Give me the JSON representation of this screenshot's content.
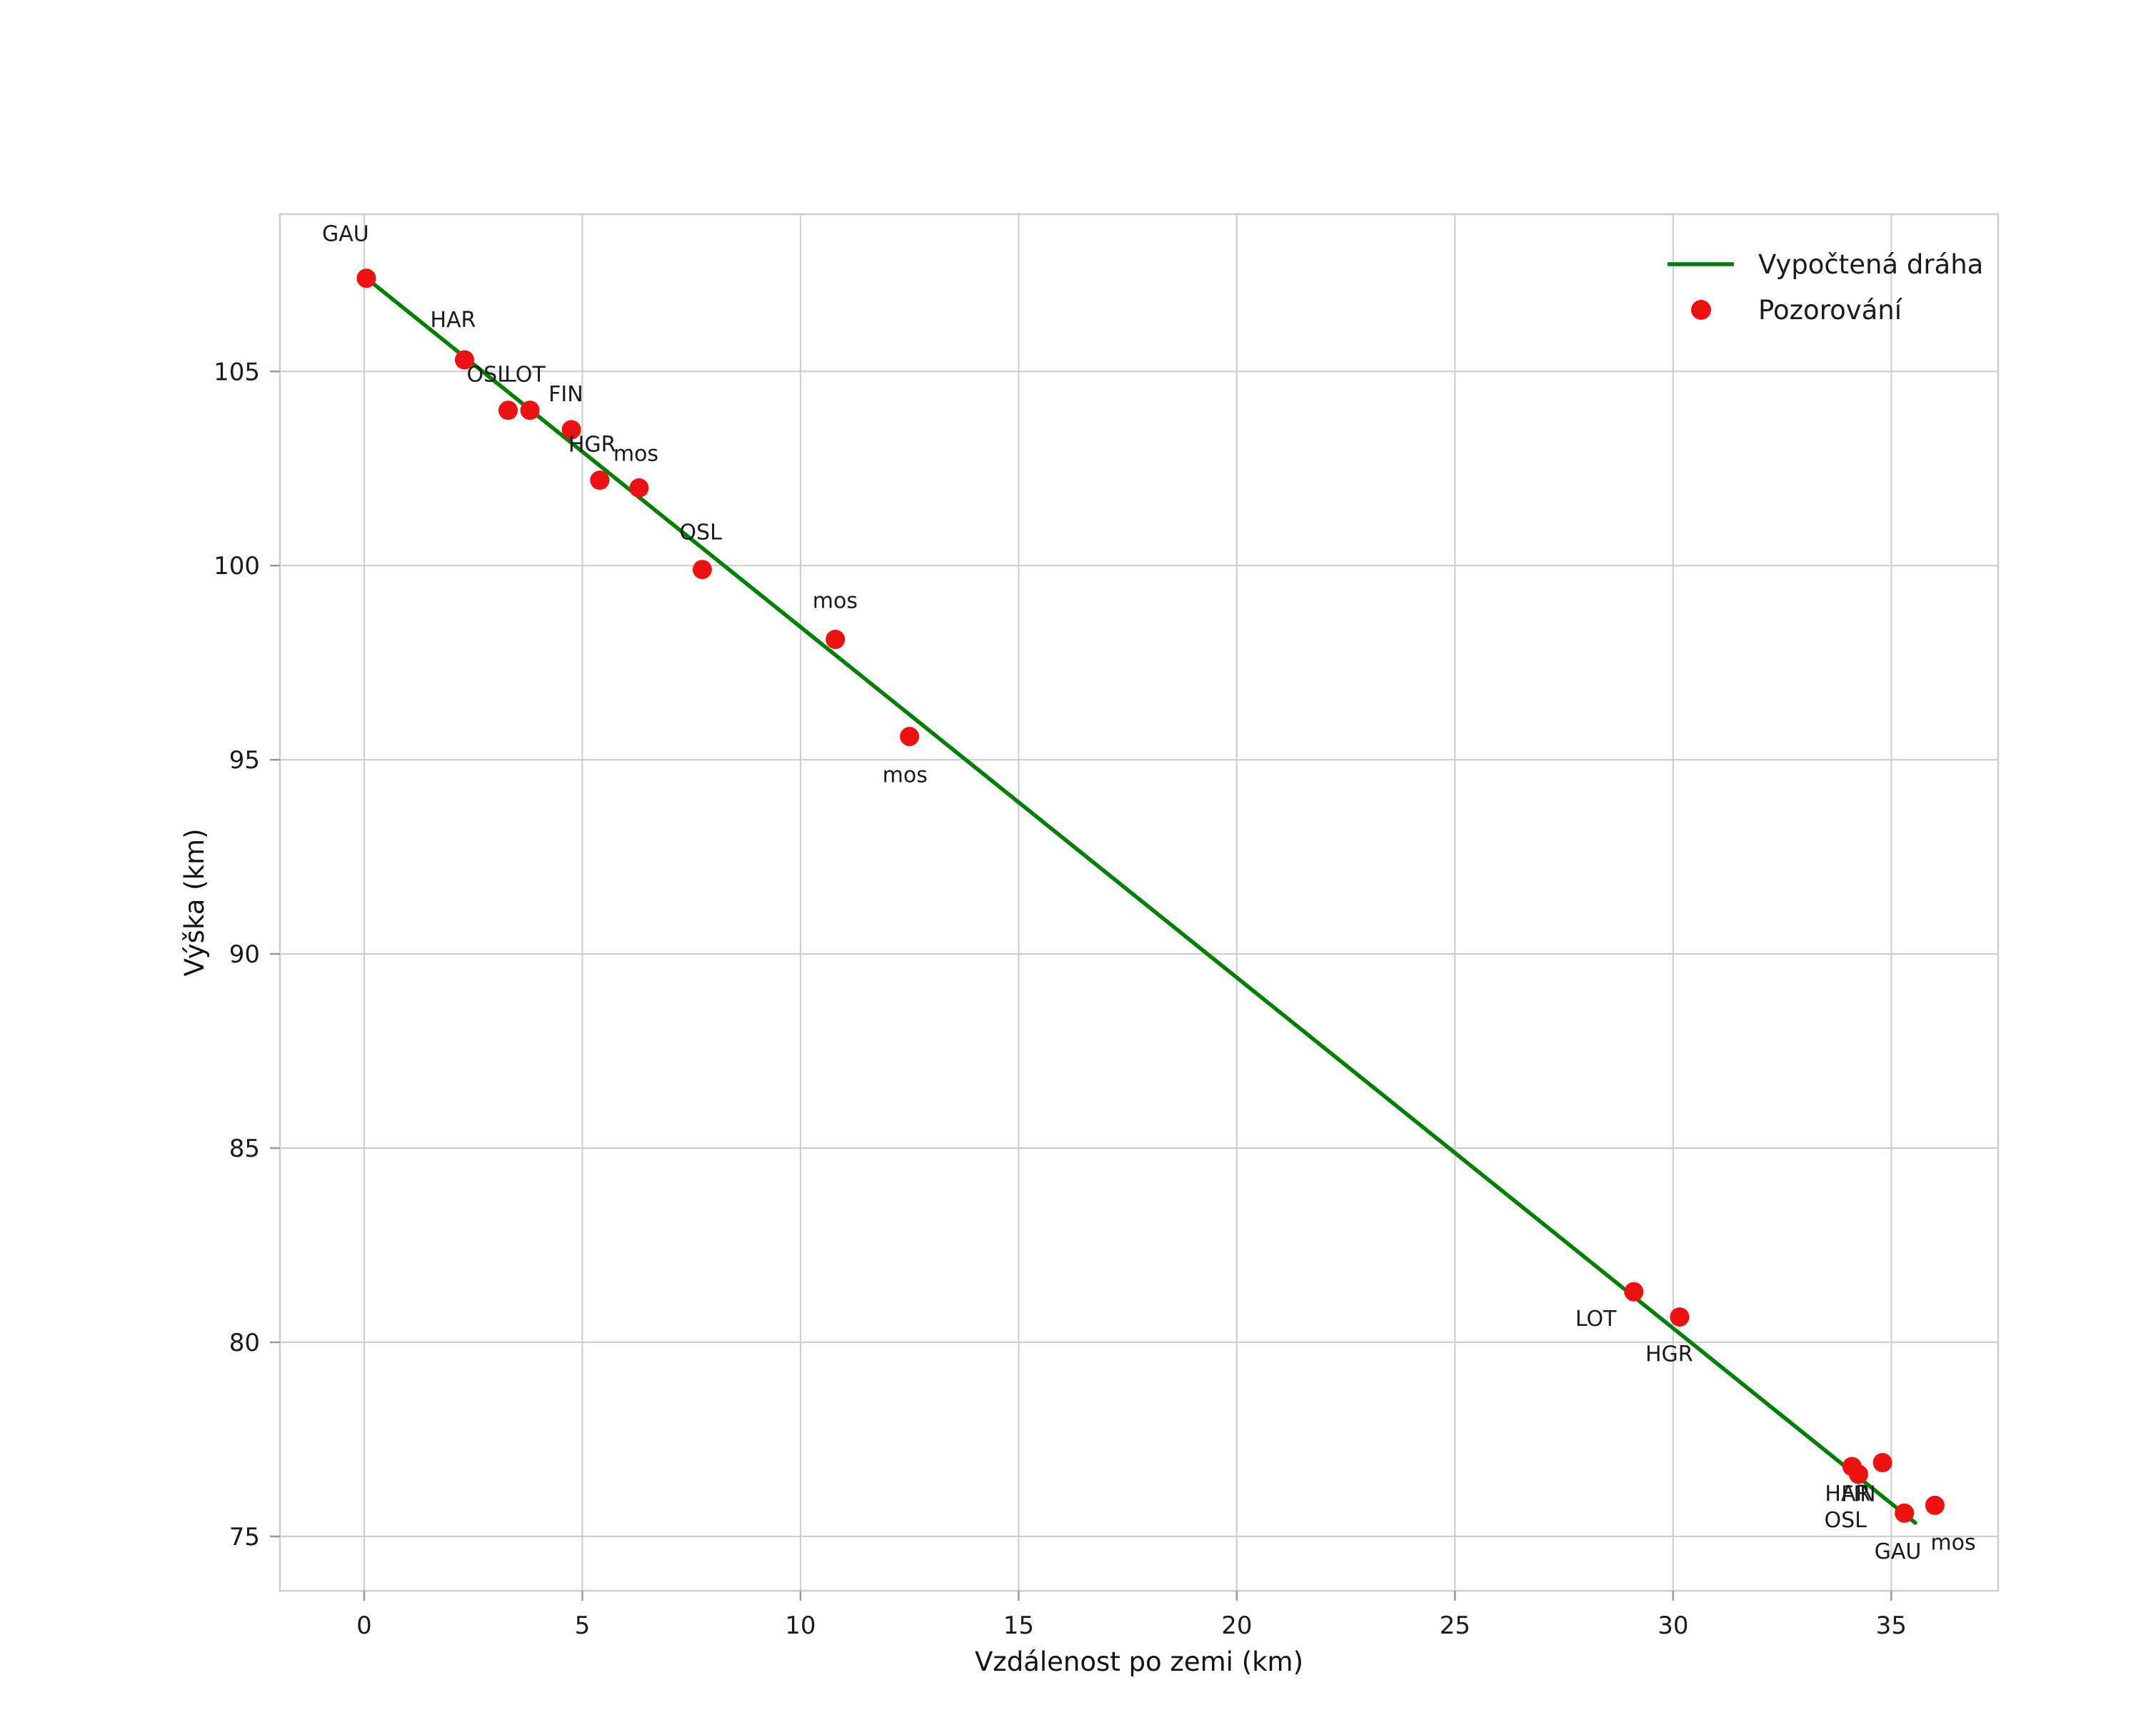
{
  "figure": {
    "background": "#ffffff"
  },
  "chart_data": {
    "type": "scatter",
    "title": "",
    "xlabel": "Vzdálenost po zemi (km)",
    "ylabel": "Výška (km)",
    "xlim": [
      -1.93,
      37.45
    ],
    "ylim": [
      73.6,
      109.05
    ],
    "xticks": [
      0,
      5,
      10,
      15,
      20,
      25,
      30,
      35
    ],
    "yticks": [
      75,
      80,
      85,
      90,
      95,
      100,
      105
    ],
    "grid": true,
    "grid_color": "#cccccc",
    "colors": {
      "line": "#008000",
      "points": "#ee1111",
      "text": "#1a1a1a"
    },
    "legend": {
      "position": "top-right",
      "frame": false,
      "entries": [
        {
          "label": "Vypočtená dráha",
          "type": "line",
          "color": "#008000"
        },
        {
          "label": "Pozorování",
          "type": "point",
          "color": "#ee1111"
        }
      ]
    },
    "series": [
      {
        "name": "Vypočtená dráha",
        "type": "line",
        "color": "#008000",
        "x": [
          0.0,
          35.55
        ],
        "y": [
          107.45,
          75.35
        ]
      },
      {
        "name": "Pozorování",
        "type": "scatter",
        "color": "#ee1111",
        "marker_radius": 13.5,
        "points": [
          {
            "station": "GAU",
            "x": 0.05,
            "y": 107.4,
            "ox": -62,
            "oy": -52
          },
          {
            "station": "HAR",
            "x": 2.3,
            "y": 105.3,
            "ox": -48,
            "oy": -46
          },
          {
            "station": "OSL",
            "x": 3.3,
            "y": 104.0,
            "ox": -58,
            "oy": -40
          },
          {
            "station": "LOT",
            "x": 3.8,
            "y": 104.0,
            "ox": -36,
            "oy": -40
          },
          {
            "station": "FIN",
            "x": 4.75,
            "y": 103.5,
            "ox": -32,
            "oy": -40
          },
          {
            "station": "HGR",
            "x": 5.4,
            "y": 102.2,
            "ox": -44,
            "oy": -40
          },
          {
            "station": "mos",
            "x": 6.3,
            "y": 102.0,
            "ox": -36,
            "oy": -38
          },
          {
            "station": "OSL",
            "x": 7.75,
            "y": 99.9,
            "ox": -32,
            "oy": -42
          },
          {
            "station": "mos",
            "x": 10.8,
            "y": 98.1,
            "ox": -32,
            "oy": -44
          },
          {
            "station": "mos",
            "x": 12.5,
            "y": 95.6,
            "ox": -38,
            "oy": 64
          },
          {
            "station": "LOT",
            "x": 29.1,
            "y": 81.3,
            "ox": -82,
            "oy": 48
          },
          {
            "station": "HGR",
            "x": 30.15,
            "y": 80.65,
            "ox": -48,
            "oy": 62
          },
          {
            "station": "HAR",
            "x": 34.1,
            "y": 76.8,
            "ox": -38,
            "oy": 48
          },
          {
            "station": "OSL",
            "x": 34.25,
            "y": 76.6,
            "ox": -48,
            "oy": 74
          },
          {
            "station": "FIN",
            "x": 34.8,
            "y": 76.9,
            "ox": -58,
            "oy": 54
          },
          {
            "station": "GAU",
            "x": 35.3,
            "y": 75.6,
            "ox": -42,
            "oy": 64
          },
          {
            "station": "mos",
            "x": 36.0,
            "y": 75.8,
            "ox": -6,
            "oy": 62
          }
        ]
      }
    ]
  }
}
